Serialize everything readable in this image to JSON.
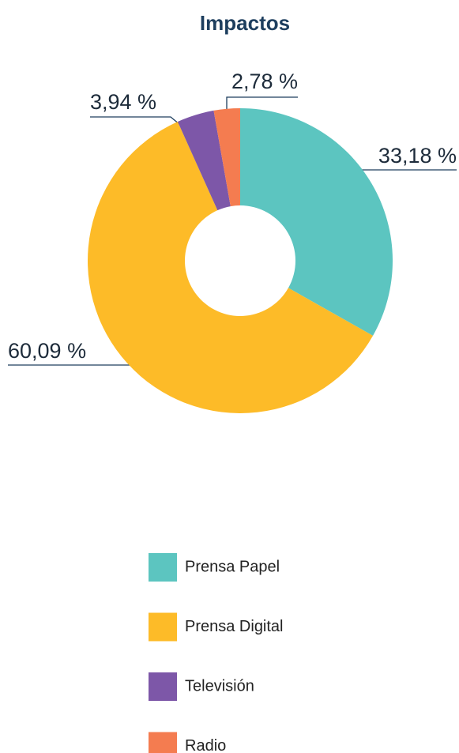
{
  "chart_data": {
    "type": "donut",
    "title": "Impactos",
    "categories": [
      "Prensa Papel",
      "Prensa Digital",
      "Televisión",
      "Radio"
    ],
    "values": [
      33.18,
      60.09,
      3.94,
      2.78
    ],
    "value_labels": [
      "33,18 %",
      "60,09 %",
      "3,94 %",
      "2,78 %"
    ],
    "colors": [
      "#5cc5c0",
      "#fdbb28",
      "#7d57a8",
      "#f47c50"
    ],
    "legend": "bottom"
  }
}
